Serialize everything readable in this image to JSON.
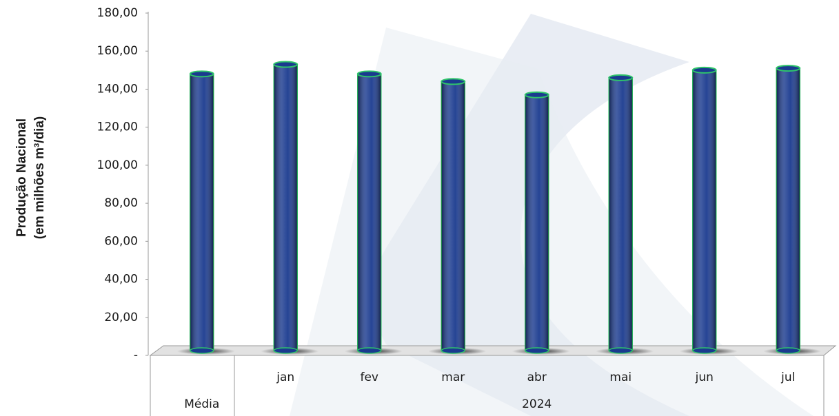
{
  "chart_data": {
    "type": "bar",
    "ylabel": [
      "Produção Nacional",
      "(em milhões m³/dia)"
    ],
    "groups": [
      {
        "label": "Média",
        "categories": [
          null
        ]
      },
      {
        "label": "2024",
        "categories": [
          "jan",
          "fev",
          "mar",
          "abr",
          "mai",
          "jun",
          "jul"
        ]
      }
    ],
    "values": [
      148,
      153,
      148,
      144,
      137,
      146,
      150,
      151
    ],
    "color": "#1a3a8f",
    "edge_color": "#2fc46a",
    "ylim": [
      0,
      180
    ],
    "yticks": [
      {
        "value": 0,
        "label": "-"
      },
      {
        "value": 20,
        "label": "20,00"
      },
      {
        "value": 40,
        "label": "40,00"
      },
      {
        "value": 60,
        "label": "60,00"
      },
      {
        "value": 80,
        "label": "80,00"
      },
      {
        "value": 100,
        "label": "100,00"
      },
      {
        "value": 120,
        "label": "120,00"
      },
      {
        "value": 140,
        "label": "140,00"
      },
      {
        "value": 160,
        "label": "160,00"
      },
      {
        "value": 180,
        "label": "180,00"
      }
    ],
    "grid": false
  }
}
